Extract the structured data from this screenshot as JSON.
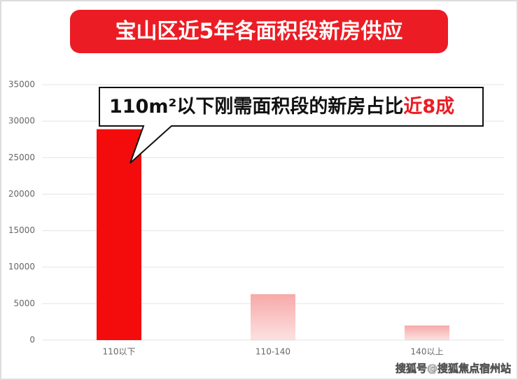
{
  "chart_data": {
    "type": "bar",
    "title": "宝山区近5年各面积段新房供应",
    "annotation": "110m²以下刚需面积段的新房占比",
    "annotation_highlight": "近8成",
    "watermark": "搜狐号@搜狐焦点宿州站",
    "categories": [
      "110以下",
      "110-140",
      "140以上"
    ],
    "values": [
      28900,
      6300,
      2000
    ],
    "colors": [
      "#f40c0c",
      "#f7a9a9",
      "#f7a9a9"
    ],
    "ylim": [
      0,
      35000
    ],
    "yticks": [
      0,
      5000,
      10000,
      15000,
      20000,
      25000,
      30000,
      35000
    ],
    "grid": true
  }
}
